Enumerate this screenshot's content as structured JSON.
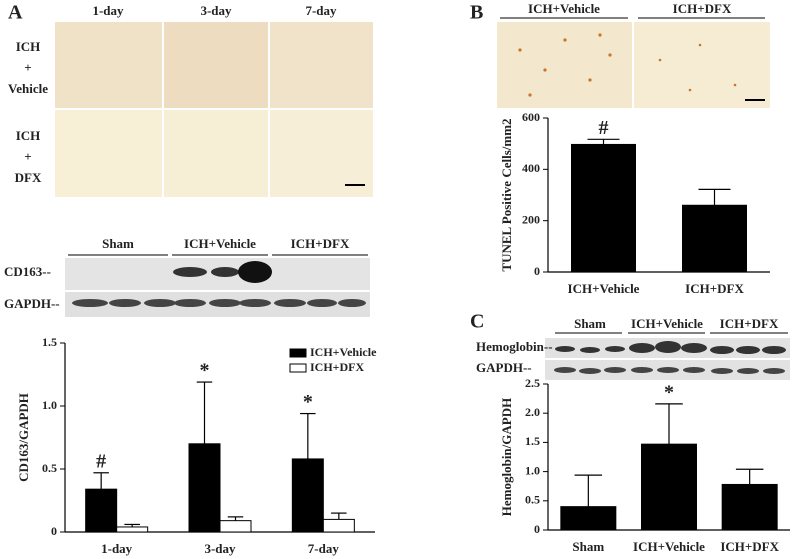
{
  "panels": {
    "A": {
      "label": "A",
      "columns": [
        "1-day",
        "3-day",
        "7-day"
      ],
      "rows": [
        [
          "ICH",
          "+",
          "Vehicle"
        ],
        [
          "ICH",
          "+",
          "DFX"
        ]
      ],
      "blot_groups": [
        "Sham",
        "ICH+Vehicle",
        "ICH+DFX"
      ],
      "blot_bands": [
        "CD163--",
        "GAPDH--"
      ]
    },
    "B": {
      "label": "B",
      "columns": [
        "ICH+Vehicle",
        "ICH+DFX"
      ]
    },
    "C": {
      "label": "C",
      "blot_groups": [
        "Sham",
        "ICH+Vehicle",
        "ICH+DFX"
      ],
      "blot_bands": [
        "Hemoglobin--",
        "GAPDH--"
      ]
    }
  },
  "chart_data": [
    {
      "type": "bar",
      "y_label": "CD163/GAPDH",
      "categories": [
        "1-day",
        "3-day",
        "7-day"
      ],
      "series": [
        {
          "name": "ICH+Vehicle",
          "color": "#000000",
          "values": [
            0.34,
            0.7,
            0.58
          ],
          "errors": [
            0.13,
            0.49,
            0.36
          ],
          "markers": [
            "#",
            "*",
            "*"
          ]
        },
        {
          "name": "ICH+DFX",
          "color": "#ffffff",
          "values": [
            0.04,
            0.09,
            0.1
          ],
          "errors": [
            0.02,
            0.03,
            0.05
          ]
        }
      ],
      "ylim": [
        0,
        1.5
      ],
      "yticks": [
        0,
        0.5,
        {
          "value": 1,
          "label": "1.0"
        },
        1.5
      ],
      "legend": "upper right"
    },
    {
      "type": "bar",
      "y_label": "TUNEL Positive Cells/mm2",
      "categories": [
        "ICH+Vehicle",
        "ICH+DFX"
      ],
      "series": [
        {
          "color": "#000000",
          "values": [
            497,
            260
          ],
          "errors": [
            20,
            62
          ],
          "markers": [
            "#",
            null
          ]
        }
      ],
      "ylim": [
        0,
        600
      ],
      "yticks": [
        0,
        200,
        400,
        600
      ]
    },
    {
      "type": "bar",
      "y_label": "Hemoglobin/GAPDH",
      "categories": [
        "Sham",
        "ICH+Vehicle",
        "ICH+DFX"
      ],
      "series": [
        {
          "color": "#000000",
          "values": [
            0.4,
            1.47,
            0.78
          ],
          "errors": [
            0.54,
            0.69,
            0.26
          ],
          "markers": [
            null,
            "*",
            null
          ]
        }
      ],
      "ylim": [
        0,
        2.5
      ],
      "yticks": [
        0,
        0.5,
        {
          "value": 1,
          "label": "1.0"
        },
        1.5,
        {
          "value": 2,
          "label": "2.0"
        },
        2.5
      ]
    }
  ]
}
